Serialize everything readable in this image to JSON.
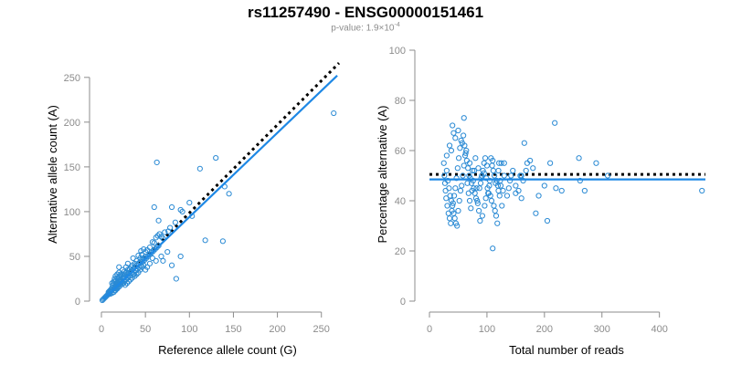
{
  "header": {
    "title": "rs11257490 - ENSG00000151461",
    "pvalue_prefix": "p-value: 1.9×10",
    "pvalue_exponent": "-4"
  },
  "colors": {
    "points": "#2a8ad4",
    "fit_line": "#1e88e5",
    "reference_line": "#000000",
    "axis": "#8c8c8c"
  },
  "chart_data": [
    {
      "type": "scatter",
      "xlabel": "Reference allele count (G)",
      "ylabel": "Alternative allele count (A)",
      "xlim": [
        0,
        270
      ],
      "ylim": [
        0,
        260
      ],
      "xticks": [
        0,
        50,
        100,
        150,
        200,
        250
      ],
      "yticks": [
        0,
        50,
        100,
        150,
        200,
        250
      ],
      "grid": false,
      "fit_line": {
        "x": [
          2,
          268
        ],
        "y": [
          2,
          252
        ]
      },
      "reference_line": {
        "x": [
          2,
          270
        ],
        "y": [
          2,
          266
        ]
      },
      "points": [
        [
          264,
          210
        ],
        [
          63,
          155
        ],
        [
          130,
          160
        ],
        [
          112,
          148
        ],
        [
          145,
          120
        ],
        [
          140,
          128
        ],
        [
          118,
          68
        ],
        [
          138,
          67
        ],
        [
          85,
          25
        ],
        [
          103,
          95
        ],
        [
          100,
          110
        ],
        [
          80,
          105
        ],
        [
          90,
          102
        ],
        [
          92,
          100
        ],
        [
          84,
          88
        ],
        [
          78,
          82
        ],
        [
          76,
          78
        ],
        [
          72,
          77
        ],
        [
          70,
          70
        ],
        [
          68,
          72
        ],
        [
          66,
          75
        ],
        [
          64,
          73
        ],
        [
          62,
          71
        ],
        [
          60,
          65
        ],
        [
          58,
          66
        ],
        [
          55,
          60
        ],
        [
          52,
          57
        ],
        [
          50,
          55
        ],
        [
          48,
          58
        ],
        [
          46,
          52
        ],
        [
          45,
          56
        ],
        [
          44,
          48
        ],
        [
          42,
          51
        ],
        [
          40,
          45
        ],
        [
          38,
          42
        ],
        [
          36,
          48
        ],
        [
          35,
          40
        ],
        [
          34,
          38
        ],
        [
          32,
          36
        ],
        [
          30,
          35
        ],
        [
          28,
          32
        ],
        [
          26,
          30
        ],
        [
          25,
          28
        ],
        [
          24,
          26
        ],
        [
          22,
          24
        ],
        [
          20,
          22
        ],
        [
          18,
          20
        ],
        [
          16,
          18
        ],
        [
          15,
          16
        ],
        [
          14,
          14
        ],
        [
          12,
          12
        ],
        [
          10,
          10
        ],
        [
          9,
          9
        ],
        [
          8,
          8
        ],
        [
          7,
          7
        ],
        [
          6,
          6
        ],
        [
          5,
          5
        ],
        [
          4,
          4
        ],
        [
          3,
          3
        ],
        [
          2,
          2
        ],
        [
          1,
          1
        ],
        [
          60,
          105
        ],
        [
          65,
          90
        ],
        [
          70,
          45
        ],
        [
          80,
          40
        ],
        [
          90,
          50
        ],
        [
          75,
          55
        ],
        [
          68,
          50
        ],
        [
          62,
          45
        ],
        [
          58,
          48
        ],
        [
          55,
          42
        ],
        [
          52,
          38
        ],
        [
          50,
          35
        ],
        [
          48,
          40
        ],
        [
          46,
          38
        ],
        [
          44,
          35
        ],
        [
          42,
          32
        ],
        [
          40,
          30
        ],
        [
          38,
          28
        ],
        [
          36,
          30
        ],
        [
          34,
          32
        ],
        [
          32,
          28
        ],
        [
          30,
          26
        ],
        [
          28,
          24
        ],
        [
          26,
          22
        ],
        [
          24,
          20
        ],
        [
          22,
          18
        ],
        [
          20,
          16
        ],
        [
          18,
          14
        ],
        [
          16,
          12
        ],
        [
          14,
          10
        ],
        [
          12,
          9
        ],
        [
          10,
          8
        ],
        [
          18,
          30
        ],
        [
          20,
          32
        ],
        [
          22,
          28
        ],
        [
          24,
          35
        ],
        [
          26,
          33
        ],
        [
          28,
          38
        ],
        [
          30,
          42
        ],
        [
          15,
          25
        ],
        [
          16,
          22
        ],
        [
          17,
          20
        ],
        [
          19,
          25
        ],
        [
          21,
          24
        ],
        [
          23,
          22
        ],
        [
          25,
          20
        ],
        [
          27,
          18
        ],
        [
          29,
          20
        ],
        [
          31,
          22
        ],
        [
          33,
          24
        ],
        [
          35,
          26
        ],
        [
          37,
          30
        ],
        [
          39,
          34
        ],
        [
          41,
          36
        ],
        [
          43,
          38
        ],
        [
          45,
          40
        ],
        [
          47,
          44
        ],
        [
          49,
          46
        ],
        [
          51,
          48
        ],
        [
          53,
          50
        ],
        [
          55,
          52
        ],
        [
          57,
          54
        ],
        [
          59,
          56
        ],
        [
          61,
          58
        ],
        [
          63,
          60
        ],
        [
          65,
          62
        ],
        [
          12,
          15
        ],
        [
          13,
          18
        ],
        [
          14,
          20
        ],
        [
          15,
          12
        ],
        [
          16,
          15
        ],
        [
          17,
          14
        ],
        [
          18,
          16
        ],
        [
          19,
          18
        ],
        [
          20,
          20
        ],
        [
          21,
          19
        ],
        [
          22,
          21
        ],
        [
          23,
          23
        ],
        [
          11,
          13
        ],
        [
          10,
          12
        ],
        [
          9,
          11
        ],
        [
          8,
          10
        ],
        [
          12,
          20
        ],
        [
          14,
          22
        ],
        [
          16,
          28
        ],
        [
          18,
          26
        ],
        [
          20,
          38
        ],
        [
          22,
          30
        ],
        [
          24,
          30
        ],
        [
          26,
          26
        ],
        [
          28,
          28
        ],
        [
          30,
          30
        ],
        [
          32,
          32
        ],
        [
          34,
          34
        ],
        [
          36,
          36
        ],
        [
          38,
          38
        ],
        [
          40,
          40
        ],
        [
          42,
          42
        ],
        [
          44,
          44
        ],
        [
          46,
          46
        ],
        [
          48,
          48
        ],
        [
          50,
          50
        ]
      ]
    },
    {
      "type": "scatter",
      "xlabel": "Total number of reads",
      "ylabel": "Percentage alternative (A)",
      "xlim": [
        0,
        480
      ],
      "ylim": [
        0,
        100
      ],
      "xticks": [
        0,
        100,
        200,
        300,
        400
      ],
      "yticks": [
        0,
        20,
        40,
        60,
        80,
        100
      ],
      "grid": false,
      "fit_line": {
        "x": [
          0,
          480
        ],
        "y": [
          48.5,
          48.5
        ]
      },
      "reference_line": {
        "x": [
          0,
          480
        ],
        "y": [
          50.5,
          50.5
        ]
      },
      "points": [
        [
          474,
          44
        ],
        [
          218,
          71
        ],
        [
          60,
          73
        ],
        [
          165,
          63
        ],
        [
          40,
          70
        ],
        [
          42,
          67
        ],
        [
          45,
          65
        ],
        [
          35,
          62
        ],
        [
          50,
          68
        ],
        [
          38,
          60
        ],
        [
          55,
          64
        ],
        [
          30,
          58
        ],
        [
          65,
          56
        ],
        [
          70,
          55
        ],
        [
          75,
          52
        ],
        [
          80,
          57
        ],
        [
          85,
          53
        ],
        [
          90,
          49
        ],
        [
          95,
          51
        ],
        [
          100,
          54
        ],
        [
          105,
          48
        ],
        [
          110,
          56
        ],
        [
          115,
          47
        ],
        [
          120,
          52
        ],
        [
          125,
          55
        ],
        [
          130,
          50
        ],
        [
          140,
          48
        ],
        [
          150,
          46
        ],
        [
          160,
          50
        ],
        [
          170,
          55
        ],
        [
          180,
          53
        ],
        [
          190,
          42
        ],
        [
          200,
          46
        ],
        [
          210,
          55
        ],
        [
          220,
          45
        ],
        [
          230,
          44
        ],
        [
          260,
          57
        ],
        [
          270,
          44
        ],
        [
          290,
          55
        ],
        [
          310,
          50
        ],
        [
          262,
          48
        ],
        [
          110,
          21
        ],
        [
          185,
          35
        ],
        [
          205,
          32
        ],
        [
          160,
          41
        ],
        [
          150,
          43
        ],
        [
          30,
          52
        ],
        [
          32,
          48
        ],
        [
          34,
          45
        ],
        [
          36,
          42
        ],
        [
          38,
          40
        ],
        [
          40,
          38
        ],
        [
          42,
          35
        ],
        [
          44,
          33
        ],
        [
          46,
          31
        ],
        [
          48,
          30
        ],
        [
          50,
          36
        ],
        [
          52,
          40
        ],
        [
          54,
          44
        ],
        [
          56,
          46
        ],
        [
          58,
          50
        ],
        [
          60,
          54
        ],
        [
          62,
          58
        ],
        [
          64,
          60
        ],
        [
          66,
          47
        ],
        [
          68,
          43
        ],
        [
          70,
          40
        ],
        [
          72,
          37
        ],
        [
          74,
          44
        ],
        [
          76,
          48
        ],
        [
          78,
          52
        ],
        [
          82,
          45
        ],
        [
          84,
          39
        ],
        [
          86,
          36
        ],
        [
          88,
          32
        ],
        [
          92,
          34
        ],
        [
          96,
          38
        ],
        [
          98,
          41
        ],
        [
          102,
          43
        ],
        [
          104,
          46
        ],
        [
          106,
          42
        ],
        [
          108,
          40
        ],
        [
          112,
          38
        ],
        [
          114,
          36
        ],
        [
          116,
          34
        ],
        [
          118,
          31
        ],
        [
          120,
          44
        ],
        [
          122,
          42
        ],
        [
          124,
          46
        ],
        [
          126,
          38
        ],
        [
          128,
          44
        ],
        [
          25,
          55
        ],
        [
          26,
          50
        ],
        [
          27,
          47
        ],
        [
          28,
          44
        ],
        [
          29,
          41
        ],
        [
          31,
          38
        ],
        [
          33,
          35
        ],
        [
          35,
          33
        ],
        [
          37,
          31
        ],
        [
          39,
          36
        ],
        [
          41,
          39
        ],
        [
          43,
          42
        ],
        [
          45,
          45
        ],
        [
          47,
          49
        ],
        [
          49,
          53
        ],
        [
          51,
          57
        ],
        [
          53,
          61
        ],
        [
          57,
          63
        ],
        [
          59,
          66
        ],
        [
          61,
          62
        ],
        [
          63,
          59
        ],
        [
          67,
          53
        ],
        [
          69,
          50
        ],
        [
          71,
          49
        ],
        [
          73,
          47
        ],
        [
          77,
          45
        ],
        [
          79,
          43
        ],
        [
          81,
          41
        ],
        [
          83,
          40
        ],
        [
          87,
          45
        ],
        [
          89,
          47
        ],
        [
          91,
          50
        ],
        [
          93,
          52
        ],
        [
          95,
          55
        ],
        [
          97,
          57
        ],
        [
          99,
          49
        ],
        [
          101,
          45
        ],
        [
          103,
          43
        ],
        [
          107,
          57
        ],
        [
          109,
          54
        ],
        [
          111,
          52
        ],
        [
          113,
          50
        ],
        [
          117,
          48
        ],
        [
          119,
          46
        ],
        [
          121,
          55
        ],
        [
          123,
          48
        ],
        [
          130,
          55
        ],
        [
          135,
          42
        ],
        [
          138,
          45
        ],
        [
          142,
          50
        ],
        [
          145,
          52
        ],
        [
          155,
          44
        ],
        [
          158,
          50
        ],
        [
          163,
          48
        ],
        [
          168,
          52
        ],
        [
          175,
          56
        ]
      ]
    }
  ]
}
